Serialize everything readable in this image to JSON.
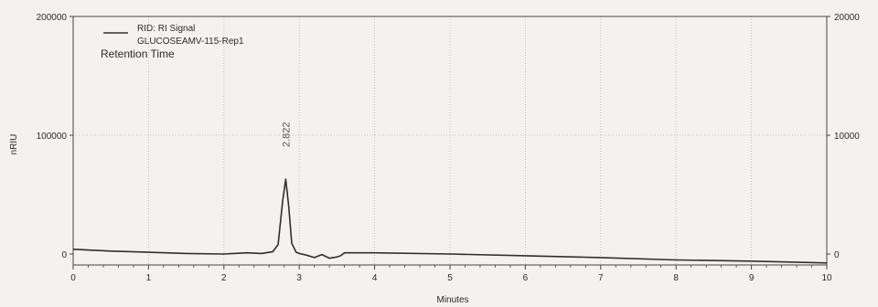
{
  "chart_data": {
    "type": "line",
    "xlabel": "Minutes",
    "ylabel": "nRIU",
    "xlim": [
      0,
      10
    ],
    "ylim": [
      0,
      200000
    ],
    "x_ticks": [
      0,
      1,
      2,
      3,
      4,
      5,
      6,
      7,
      8,
      9,
      10
    ],
    "y_ticks_left": [
      "0",
      "100000",
      "200000"
    ],
    "y_ticks_right": [
      "0",
      "10000",
      "20000"
    ],
    "grid": true,
    "legend": {
      "placement": "top-left",
      "entries": [
        "RID: RI Signal",
        "GLUCOSEAMV-115-Rep1"
      ],
      "subtitle": "Retention Time"
    },
    "annotations": [
      {
        "x": 2.822,
        "y": 90000,
        "text": "2.822"
      }
    ],
    "series": [
      {
        "name": "RID: RI Signal",
        "x": [
          0,
          0.5,
          1.0,
          1.5,
          2.0,
          2.3,
          2.5,
          2.65,
          2.72,
          2.78,
          2.82,
          2.86,
          2.9,
          2.96,
          3.0,
          3.1,
          3.2,
          3.3,
          3.4,
          3.5,
          3.55,
          3.6,
          4.0,
          5.0,
          6.0,
          7.0,
          8.0,
          9.0,
          10.0
        ],
        "values": [
          4000,
          2500,
          1500,
          500,
          0,
          1000,
          500,
          2000,
          8000,
          45000,
          63000,
          40000,
          9000,
          1500,
          500,
          -1000,
          -3000,
          -500,
          -3500,
          -2500,
          -1500,
          1000,
          1000,
          0,
          -1500,
          -3000,
          -5000,
          -6000,
          -7500
        ]
      }
    ]
  },
  "colors": {
    "background": "#f4f2ee",
    "line": "#2f2f2f",
    "grid": "#b5b5b5"
  }
}
